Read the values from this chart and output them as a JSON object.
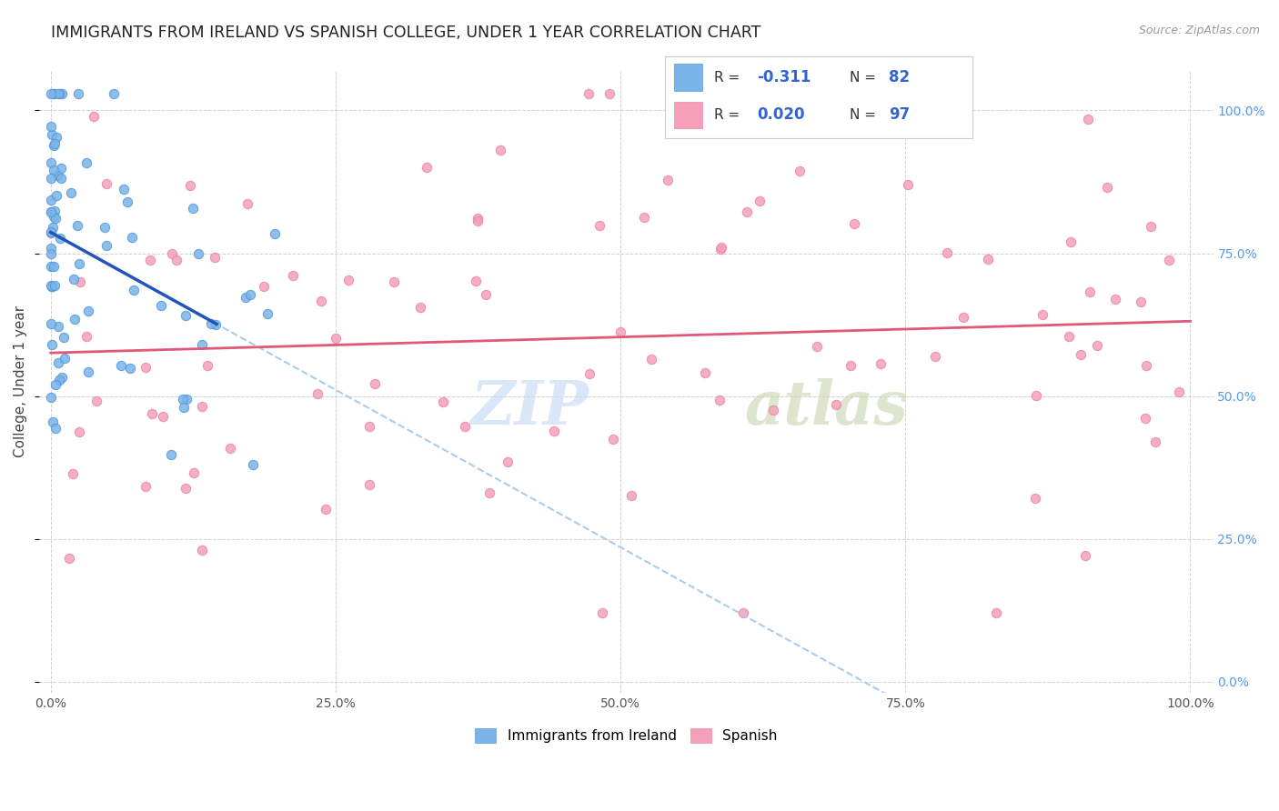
{
  "title": "IMMIGRANTS FROM IRELAND VS SPANISH COLLEGE, UNDER 1 YEAR CORRELATION CHART",
  "source": "Source: ZipAtlas.com",
  "ylabel": "College, Under 1 year",
  "blue_color": "#7ab4e8",
  "pink_color": "#f5a0b8",
  "blue_line_color": "#2255bb",
  "pink_line_color": "#e05878",
  "dashed_color": "#aaccee",
  "R_blue": -0.311,
  "N_blue": 82,
  "R_pink": 0.02,
  "N_pink": 97,
  "grid_color": "#cccccc",
  "right_tick_color": "#5599ee",
  "background_color": "#ffffff",
  "title_color": "#222222",
  "source_color": "#999999",
  "ylabel_color": "#444444",
  "watermark_zip_color": "#c0d8f5",
  "watermark_atlas_color": "#c8d4b0",
  "scatter_size": 55,
  "title_fontsize": 12.5,
  "axis_fontsize": 10,
  "legend_fontsize": 12
}
